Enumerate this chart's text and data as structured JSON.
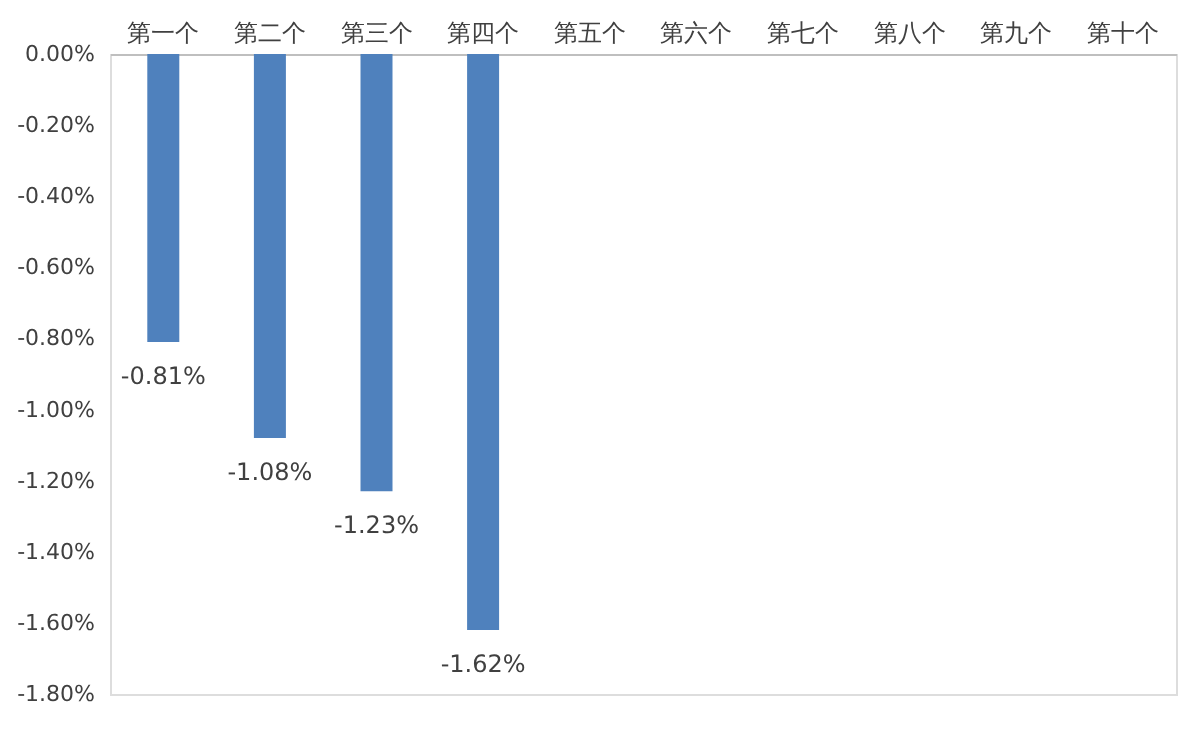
{
  "chart_data": {
    "type": "bar",
    "categories": [
      "第一个",
      "第二个",
      "第三个",
      "第四个",
      "第五个",
      "第六个",
      "第七个",
      "第八个",
      "第九个",
      "第十个"
    ],
    "values": [
      -0.81,
      -1.08,
      -1.23,
      -1.62,
      null,
      null,
      null,
      null,
      null,
      null
    ],
    "value_labels": [
      "-0.81%",
      "-1.08%",
      "-1.23%",
      "-1.62%",
      null,
      null,
      null,
      null,
      null,
      null
    ],
    "color": "#4f81bd",
    "ylim": [
      -1.8,
      0
    ],
    "yticks": [
      {
        "value": 0,
        "label": "0.00%"
      },
      {
        "value": -0.2,
        "label": "-0.20%"
      },
      {
        "value": -0.4,
        "label": "-0.40%"
      },
      {
        "value": -0.6,
        "label": "-0.60%"
      },
      {
        "value": -0.8,
        "label": "-0.80%"
      },
      {
        "value": -1.0,
        "label": "-1.00%"
      },
      {
        "value": -1.2,
        "label": "-1.20%"
      },
      {
        "value": -1.4,
        "label": "-1.40%"
      },
      {
        "value": -1.6,
        "label": "-1.60%"
      },
      {
        "value": -1.8,
        "label": "-1.80%"
      }
    ],
    "grid": false,
    "legend": false
  }
}
